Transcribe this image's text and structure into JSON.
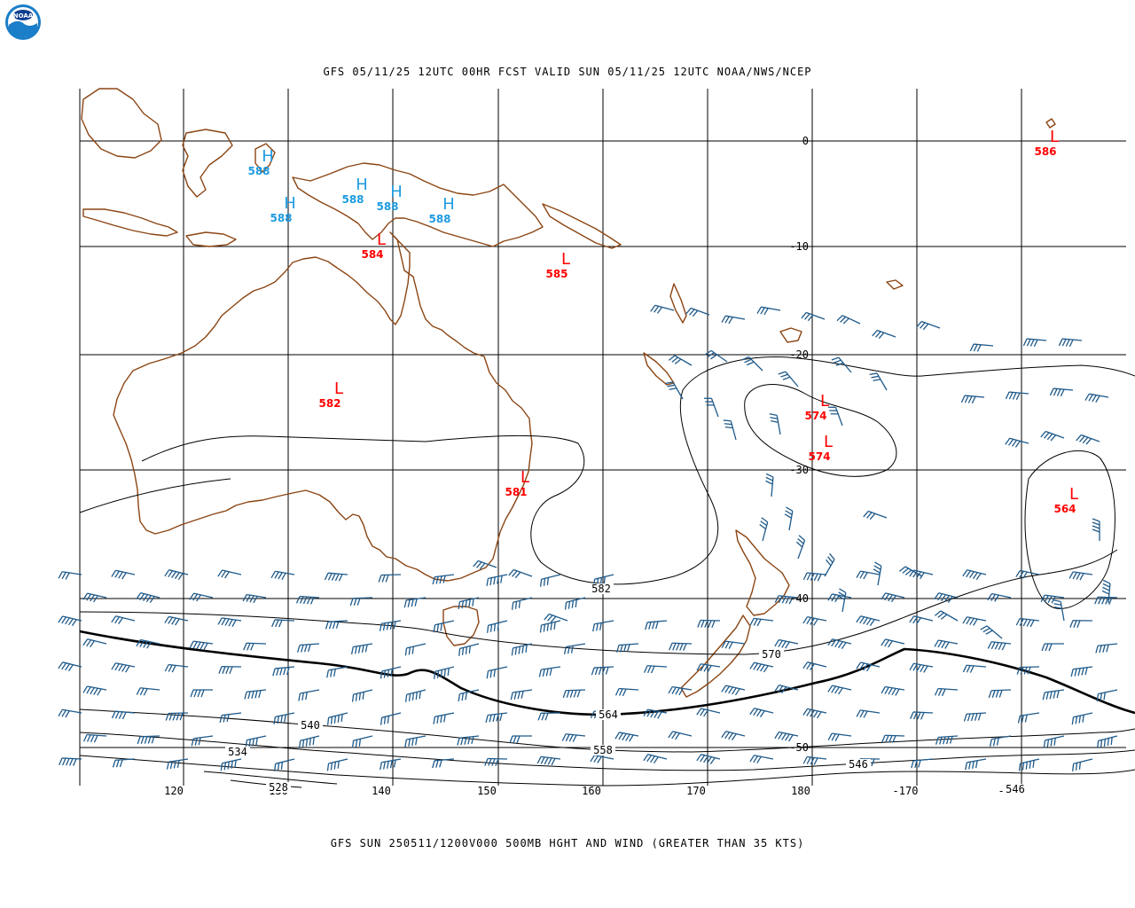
{
  "header": {
    "title": "GFS 05/11/25 12UTC 00HR FCST VALID SUN 05/11/25 12UTC NOAA/NWS/NCEP"
  },
  "footer": {
    "title": "GFS SUN 250511/1200V000 500MB HGHT AND WIND (GREATER THAN 35 KTS)"
  },
  "logo": {
    "icon": "noaa-logo-icon",
    "text": "NOAA"
  },
  "colors": {
    "coastline": "#8b4513",
    "high": "#1e9be0",
    "low": "#ff0000",
    "wind": "#1f5a8a",
    "contour": "#000000"
  },
  "longitude_labels": [
    "120",
    "130",
    "140",
    "150",
    "160",
    "170",
    "180",
    "-170",
    "-160"
  ],
  "latitude_labels": [
    "0",
    "-10",
    "-20",
    "-30",
    "-40",
    "-50"
  ],
  "pressure_systems": [
    {
      "type": "H",
      "value": "588"
    },
    {
      "type": "H",
      "value": "588"
    },
    {
      "type": "H",
      "value": "588"
    },
    {
      "type": "H",
      "value": "588"
    },
    {
      "type": "H",
      "value": "588"
    },
    {
      "type": "L",
      "value": "584"
    },
    {
      "type": "L",
      "value": "585"
    },
    {
      "type": "L",
      "value": "586"
    },
    {
      "type": "L",
      "value": "582"
    },
    {
      "type": "L",
      "value": "581"
    },
    {
      "type": "L",
      "value": "574"
    },
    {
      "type": "L",
      "value": "574"
    },
    {
      "type": "L",
      "value": "564"
    }
  ],
  "contour_labels": [
    "582",
    "570",
    "564",
    "558",
    "546",
    "540",
    "534",
    "528",
    "546"
  ]
}
